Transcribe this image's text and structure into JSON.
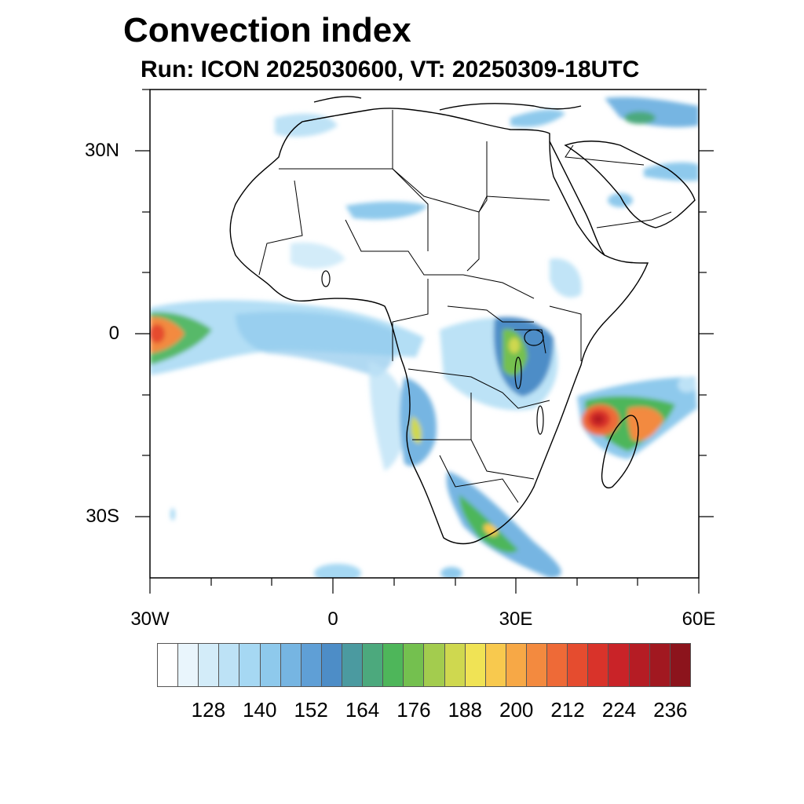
{
  "title": "Convection index",
  "subtitle": "Run: ICON 2025030600,  VT: 20250309-18UTC",
  "axes": {
    "lat_ticks": [
      {
        "value": 30,
        "label": "30N"
      },
      {
        "value": 0,
        "label": "0"
      },
      {
        "value": -30,
        "label": "30S"
      }
    ],
    "lon_ticks": [
      {
        "value": -30,
        "label": "30W"
      },
      {
        "value": 0,
        "label": "0"
      },
      {
        "value": 30,
        "label": "30E"
      },
      {
        "value": 60,
        "label": "60E"
      }
    ],
    "lon_range": [
      -30,
      60
    ],
    "lat_range": [
      -40,
      40
    ]
  },
  "colorbar": {
    "colors": [
      "#ffffff",
      "#e9f5fc",
      "#d3ecf9",
      "#bde2f6",
      "#a6d8f3",
      "#8ec9ec",
      "#76b5e2",
      "#5f9fd6",
      "#4d8dc7",
      "#4b9aa0",
      "#4ca97d",
      "#4eb65a",
      "#74c04f",
      "#a3cc4e",
      "#cfd84f",
      "#f0e355",
      "#f8c94e",
      "#f7a846",
      "#f38a3f",
      "#ee6a37",
      "#e54c2f",
      "#d9332a",
      "#c92328",
      "#b51c24",
      "#a11820",
      "#8c141c"
    ],
    "labels": [
      "128",
      "140",
      "152",
      "164",
      "176",
      "188",
      "200",
      "212",
      "224",
      "236"
    ]
  },
  "convection_areas": [
    {
      "name": "equatorial-atlantic-band",
      "lon": -26,
      "lat": 0.3,
      "max_index": 212
    },
    {
      "name": "gulf-of-guinea-band",
      "lon": 3,
      "lat": 0.5,
      "max_index": 164
    },
    {
      "name": "great-lakes-region",
      "lon": 30,
      "lat": -3,
      "max_index": 188
    },
    {
      "name": "angola-coast",
      "lon": 14,
      "lat": -14,
      "max_index": 188
    },
    {
      "name": "southern-africa-band",
      "lon": 27,
      "lat": -31,
      "max_index": 200
    },
    {
      "name": "mozambique-channel-cyclone",
      "lon": 45,
      "lat": -14,
      "max_index": 230
    },
    {
      "name": "east-madagascar-band",
      "lon": 53,
      "lat": -13,
      "max_index": 212
    },
    {
      "name": "arabia-north",
      "lon": 50,
      "lat": 33,
      "max_index": 164
    },
    {
      "name": "sahara-band",
      "lon": 12,
      "lat": 20,
      "max_index": 152
    }
  ]
}
